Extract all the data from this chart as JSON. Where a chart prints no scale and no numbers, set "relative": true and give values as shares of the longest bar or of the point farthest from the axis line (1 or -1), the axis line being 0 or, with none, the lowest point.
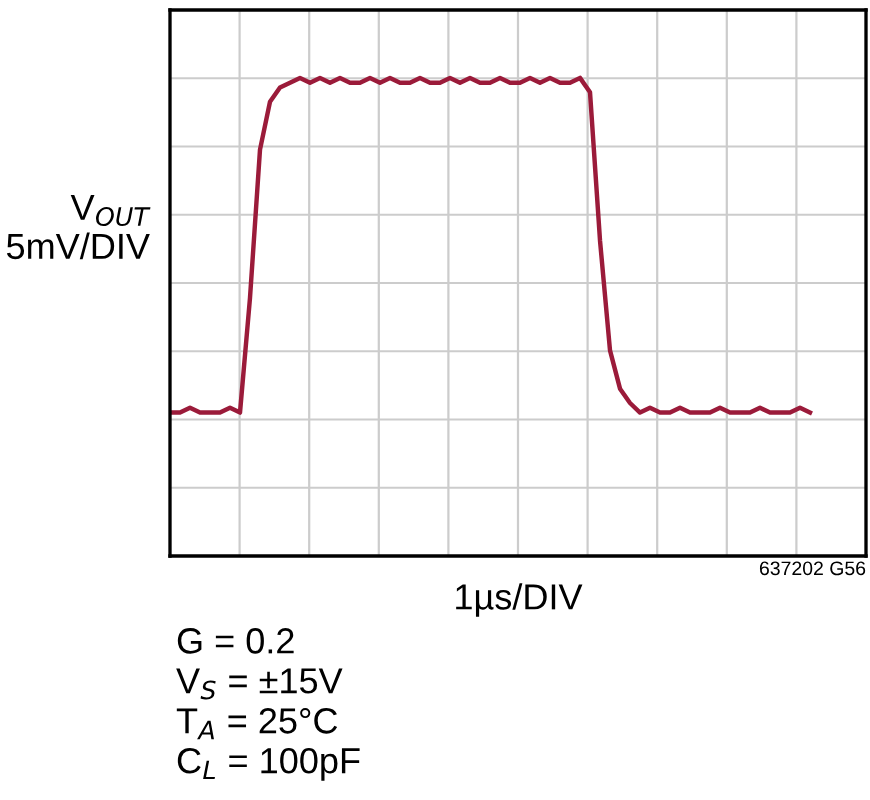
{
  "chart_data": {
    "type": "line",
    "relative": true,
    "grid": true,
    "xlabel": "1µs/DIV",
    "ylabel": "V$_{OUT}$\n5mV/DIV",
    "categories": [
      null,
      null,
      null,
      null,
      null,
      null,
      null,
      null,
      null,
      null,
      null,
      null,
      null,
      null,
      null,
      null,
      null,
      null,
      null,
      null,
      null,
      null,
      null,
      null,
      null,
      null,
      null,
      null,
      null,
      null,
      null,
      null,
      null,
      null,
      null,
      null,
      null,
      null,
      null,
      null,
      null,
      null,
      null,
      null,
      null,
      null,
      null,
      null,
      null,
      null,
      null,
      null,
      null,
      null,
      null,
      null,
      null,
      null,
      null,
      null,
      null,
      null,
      null,
      null,
      null
    ],
    "series": [
      {
        "color": "#9b1b3a",
        "values": [
          0.3,
          0.3,
          0.31,
          0.3,
          0.3,
          0.3,
          0.31,
          0.3,
          0.54,
          0.85,
          0.95,
          0.98,
          0.99,
          1.0,
          0.99,
          1.0,
          0.99,
          1.0,
          0.99,
          0.99,
          1.0,
          0.99,
          1.0,
          0.99,
          0.99,
          1.0,
          0.99,
          0.99,
          1.0,
          0.99,
          1.0,
          0.99,
          0.99,
          1.0,
          0.99,
          0.99,
          1.0,
          0.99,
          1.0,
          0.99,
          0.99,
          1.0,
          0.97,
          0.66,
          0.43,
          0.35,
          0.32,
          0.3,
          0.31,
          0.3,
          0.3,
          0.31,
          0.3,
          0.3,
          0.3,
          0.31,
          0.3,
          0.3,
          0.3,
          0.31,
          0.3,
          0.3,
          0.3,
          0.31,
          0.3
        ]
      }
    ],
    "annotations": [
      "637202 G56",
      "G = 0.2",
      "V$_{S}$ = ±15V",
      "T$_{A}$ = 25°C",
      "C$_{L}$ = 100pF"
    ]
  }
}
